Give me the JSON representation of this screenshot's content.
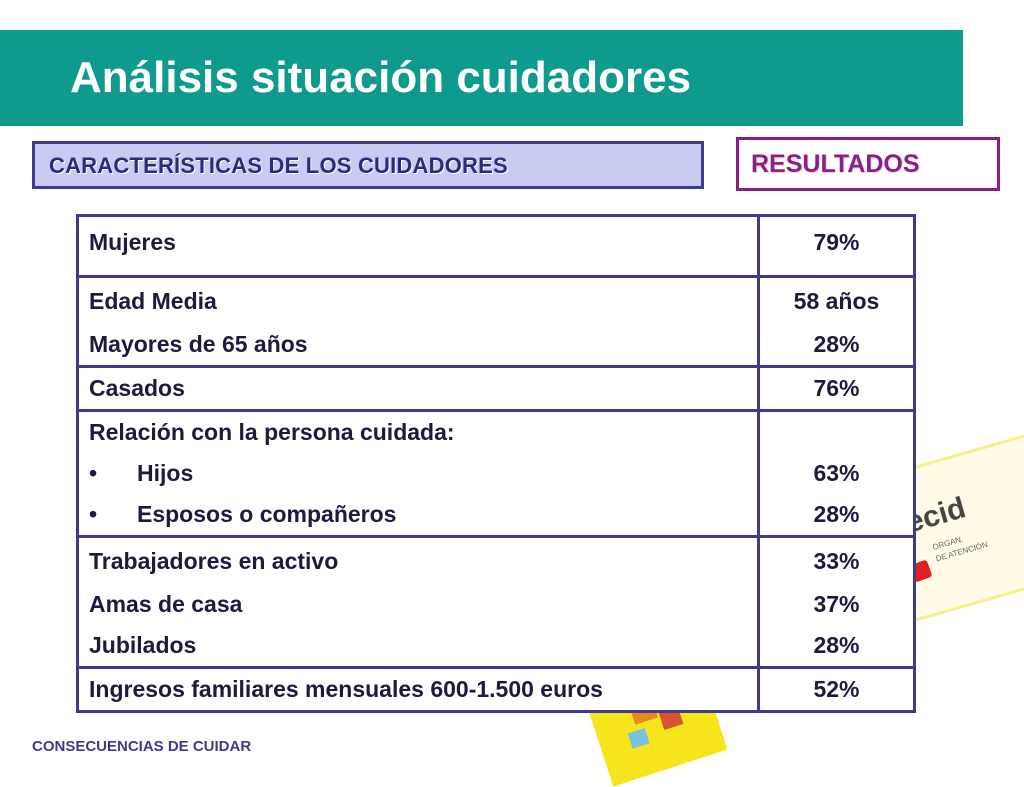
{
  "title": "Análisis situación cuidadores",
  "section_label": "CARACTERÍSTICAS DE LOS CUIDADORES",
  "results_label": "RESULTADOS",
  "logo": {
    "word": "ecid",
    "sub1": "ORGAN.",
    "sub2": "DE ATENCIÓN"
  },
  "table": {
    "groups": [
      {
        "rows": [
          {
            "label": "Mujeres",
            "value": "79%"
          }
        ]
      },
      {
        "rows": [
          {
            "label": "Edad Media",
            "value": "58 años"
          },
          {
            "label": "Mayores de 65 años",
            "value": "28%"
          }
        ]
      },
      {
        "rows": [
          {
            "label": "Casados",
            "value": "76%"
          }
        ]
      },
      {
        "header": "Relación con la persona cuidada:",
        "bullets": [
          {
            "label": "Hijos",
            "value": "63%"
          },
          {
            "label": "Esposos o compañeros",
            "value": "28%"
          }
        ]
      },
      {
        "rows": [
          {
            "label": "Trabajadores en activo",
            "value": "33%"
          },
          {
            "label": "Amas de casa",
            "value": "37%"
          },
          {
            "label": "Jubilados",
            "value": "28%"
          }
        ]
      },
      {
        "rows": [
          {
            "label": "Ingresos familiares mensuales 600-1.500 euros",
            "value": "52%"
          }
        ]
      }
    ],
    "bullet_symbol": "•"
  },
  "footer": "CONSECUENCIAS DE CUIDAR",
  "colors": {
    "title_bar": "#0f9a8e",
    "table_border": "#3d3a90",
    "results_border": "#8b1f86",
    "section_fill": "#c9cbf3"
  }
}
